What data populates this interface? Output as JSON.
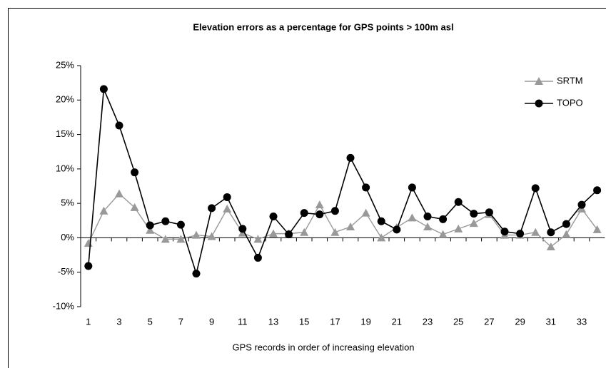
{
  "chart_data": {
    "type": "line",
    "title": "Elevation errors as a percentage for GPS points > 100m asl",
    "x_label": "GPS records in order of increasing elevation",
    "categories": [
      "1",
      null,
      "3",
      null,
      "5",
      null,
      "7",
      null,
      "9",
      null,
      "11",
      null,
      "13",
      null,
      "15",
      null,
      "17",
      null,
      "19",
      null,
      "21",
      null,
      "23",
      null,
      "25",
      null,
      "27",
      null,
      "29",
      null,
      "31",
      null,
      "33",
      null
    ],
    "series": [
      {
        "name": "SRTM",
        "color": "#999999",
        "marker": "triangle",
        "values": [
          -0.8,
          3.9,
          6.4,
          4.4,
          1.1,
          -0.2,
          -0.2,
          0.4,
          0.2,
          4.2,
          0.7,
          -0.2,
          0.6,
          0.6,
          0.8,
          4.8,
          0.8,
          1.6,
          3.6,
          0.0,
          1.5,
          2.9,
          1.6,
          0.5,
          1.3,
          2.1,
          3.4,
          0.4,
          0.4,
          0.8,
          -1.3,
          0.5,
          4.2,
          1.2
        ]
      },
      {
        "name": "TOPO",
        "color": "#000000",
        "marker": "circle",
        "values": [
          -4.1,
          21.6,
          16.3,
          9.5,
          1.8,
          2.4,
          1.9,
          -5.2,
          4.3,
          5.9,
          1.3,
          -2.9,
          3.1,
          0.5,
          3.6,
          3.4,
          3.9,
          11.6,
          7.3,
          2.4,
          1.2,
          7.3,
          3.1,
          2.7,
          5.2,
          3.5,
          3.7,
          0.9,
          0.6,
          7.2,
          0.8,
          2.0,
          4.8,
          6.9
        ]
      }
    ],
    "ylim": [
      -10,
      25
    ],
    "yticks": [
      {
        "value": -10,
        "label": "-10%"
      },
      {
        "value": -5,
        "label": "-5%"
      },
      {
        "value": 0,
        "label": "0%"
      },
      {
        "value": 5,
        "label": "5%"
      },
      {
        "value": 10,
        "label": "10%"
      },
      {
        "value": 15,
        "label": "15%"
      },
      {
        "value": 20,
        "label": "20%"
      },
      {
        "value": 25,
        "label": "25%"
      }
    ],
    "grid": false,
    "legend": "upper right"
  }
}
